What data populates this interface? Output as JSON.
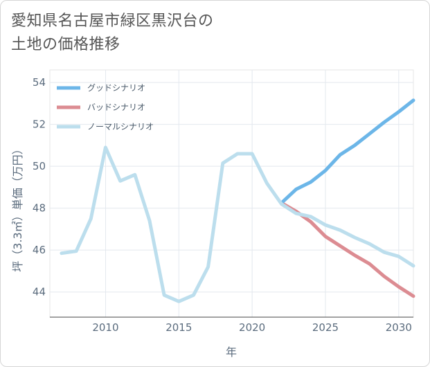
{
  "title": {
    "line1": "愛知県名古屋市緑区黒沢台の",
    "line2": "土地の価格推移"
  },
  "chart_data": {
    "type": "line",
    "xlabel": "年",
    "ylabel": "坪（3.3㎡）単価（万円）",
    "xlim": [
      2006.2,
      2031
    ],
    "ylim": [
      42.8,
      54.6
    ],
    "x_ticks": [
      2010,
      2015,
      2020,
      2025,
      2030
    ],
    "x_tick_labels": [
      "2010",
      "2015",
      "2020",
      "2025",
      "2030"
    ],
    "y_ticks": [
      44,
      46,
      48,
      50,
      52,
      54
    ],
    "y_tick_labels": [
      "44",
      "46",
      "48",
      "50",
      "52",
      "54"
    ],
    "grid": true,
    "legend_position": "top-left",
    "series": [
      {
        "name": "グッドシナリオ",
        "color": "#6cb6e8",
        "x": [
          2022,
          2023,
          2024,
          2025,
          2026,
          2027,
          2028,
          2029,
          2030,
          2031
        ],
        "y": [
          48.25,
          48.9,
          49.25,
          49.8,
          50.55,
          51.0,
          51.55,
          52.1,
          52.6,
          53.15
        ]
      },
      {
        "name": "バッドシナリオ",
        "color": "#dc8c92",
        "x": [
          2022,
          2023,
          2024,
          2025,
          2026,
          2027,
          2028,
          2029,
          2030,
          2031
        ],
        "y": [
          48.25,
          47.85,
          47.35,
          46.65,
          46.2,
          45.75,
          45.35,
          44.75,
          44.25,
          43.8
        ]
      },
      {
        "name": "ノーマルシナリオ",
        "color": "#bcdeed",
        "x": [
          2007,
          2008,
          2009,
          2010,
          2011,
          2012,
          2013,
          2014,
          2015,
          2016,
          2017,
          2018,
          2019,
          2020,
          2021,
          2022,
          2023,
          2024,
          2025,
          2026,
          2027,
          2028,
          2029,
          2030,
          2031
        ],
        "y": [
          45.85,
          45.95,
          47.5,
          50.9,
          49.3,
          49.6,
          47.4,
          43.85,
          43.55,
          43.85,
          45.2,
          50.15,
          50.6,
          50.6,
          49.2,
          48.2,
          47.75,
          47.6,
          47.2,
          46.95,
          46.6,
          46.3,
          45.9,
          45.7,
          45.25
        ]
      }
    ]
  }
}
